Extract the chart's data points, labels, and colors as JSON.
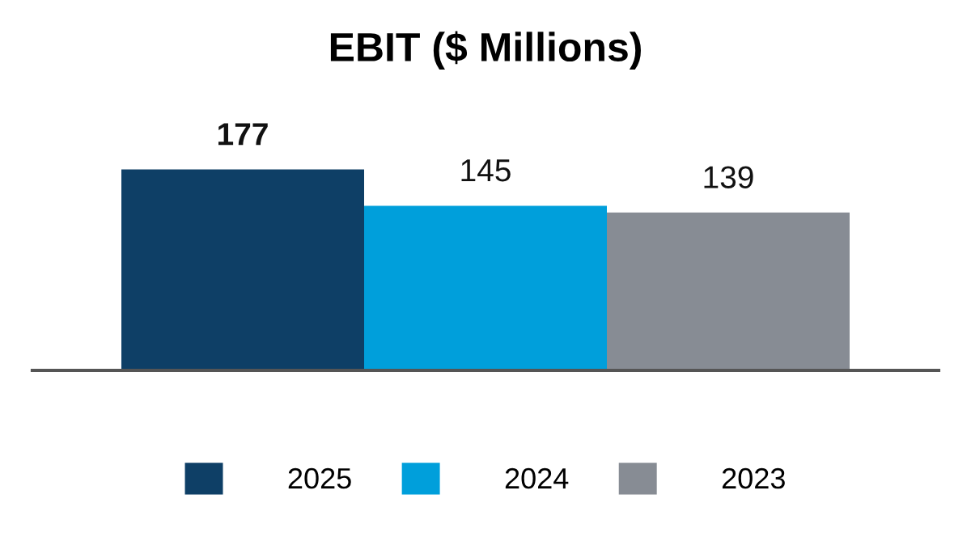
{
  "chart_data": {
    "type": "bar",
    "title": "EBIT ($ Millions)",
    "categories": [
      null
    ],
    "series": [
      {
        "name": "2025",
        "color": "#0e3f66",
        "values": [
          177
        ]
      },
      {
        "name": "2024",
        "color": "#009fdb",
        "values": [
          145
        ]
      },
      {
        "name": "2023",
        "color": "#878c94",
        "values": [
          139
        ]
      }
    ],
    "data_labels": true,
    "legend": "bottom",
    "grid": false
  }
}
